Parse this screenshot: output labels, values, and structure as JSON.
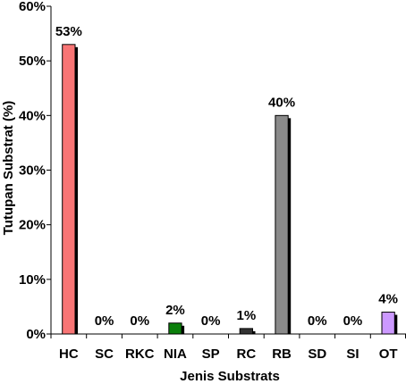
{
  "chart_data": {
    "type": "bar",
    "xlabel": "Jenis Substrats",
    "ylabel": "Tutupan Substrat (%)",
    "ylim": [
      0,
      60
    ],
    "yticks": [
      0,
      10,
      20,
      30,
      40,
      50,
      60
    ],
    "ytick_labels": [
      "0%",
      "10%",
      "20%",
      "30%",
      "40%",
      "50%",
      "60%"
    ],
    "grid": false,
    "categories": [
      "HC",
      "SC",
      "RKC",
      "NIA",
      "SP",
      "RC",
      "RB",
      "SD",
      "SI",
      "OT"
    ],
    "values": [
      53,
      0,
      0,
      2,
      0,
      1,
      40,
      0,
      0,
      4
    ],
    "data_labels": [
      "53%",
      "0%",
      "0%",
      "2%",
      "0%",
      "1%",
      "40%",
      "0%",
      "0%",
      "4%"
    ],
    "bar_colors": [
      "#f87575",
      "#ffffff",
      "#ffffff",
      "#0b7f0b",
      "#ffffff",
      "#333333",
      "#8a8a8a",
      "#ffffff",
      "#ffffff",
      "#cc99ff"
    ],
    "shadow_color": "#000000"
  }
}
